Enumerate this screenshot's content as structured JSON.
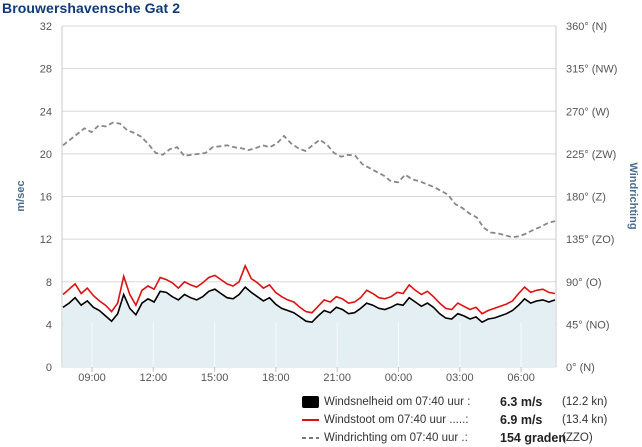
{
  "title": "Brouwershavensche Gat 2",
  "chart_data": {
    "type": "line",
    "title": "Brouwershavensche Gat 2",
    "ylabel": "m/sec",
    "y2label": "Windrichting",
    "ylim": [
      0,
      32
    ],
    "yticks": [
      0,
      4,
      8,
      12,
      16,
      20,
      24,
      28,
      32
    ],
    "y2ticks": [
      "0° (N)",
      "45° (NO)",
      "90° (O)",
      "135° (ZO)",
      "180° (Z)",
      "225° (ZW)",
      "270° (W)",
      "315° (NW)",
      "360° (N)"
    ],
    "xticks": [
      "09:00",
      "12:00",
      "15:00",
      "18:00",
      "21:00",
      "00:00",
      "03:00",
      "06:00"
    ],
    "x_start": "07:40",
    "grid": true,
    "legend": "bottom-right",
    "colors": {
      "windsnelheid": "#000000",
      "windstoot": "#dd1111",
      "windrichting": "#888888",
      "area": "#e4eff3"
    },
    "series": [
      {
        "name": "Windsnelheid",
        "axis": "left",
        "style": "solid",
        "fill": true,
        "values": [
          5.6,
          6.0,
          6.5,
          5.8,
          6.2,
          5.6,
          5.3,
          4.8,
          4.3,
          5.0,
          6.8,
          5.5,
          4.9,
          6.0,
          6.4,
          6.1,
          7.1,
          7.0,
          6.6,
          6.3,
          6.8,
          6.5,
          6.3,
          6.6,
          7.1,
          7.3,
          6.9,
          6.5,
          6.4,
          6.8,
          7.5,
          7.0,
          6.6,
          6.2,
          6.5,
          5.9,
          5.5,
          5.3,
          5.1,
          4.7,
          4.3,
          4.2,
          4.8,
          5.3,
          5.1,
          5.6,
          5.4,
          5.0,
          5.1,
          5.5,
          6.0,
          5.8,
          5.5,
          5.4,
          5.6,
          5.9,
          5.8,
          6.5,
          6.1,
          5.7,
          6.0,
          5.6,
          5.0,
          4.6,
          4.5,
          5.0,
          4.8,
          4.5,
          4.7,
          4.2,
          4.5,
          4.6,
          4.8,
          5.0,
          5.3,
          5.8,
          6.4,
          6.0,
          6.2,
          6.3,
          6.1,
          6.3
        ]
      },
      {
        "name": "Windstoot",
        "axis": "left",
        "style": "solid",
        "fill": false,
        "values": [
          6.8,
          7.3,
          7.8,
          6.9,
          7.4,
          6.7,
          6.2,
          5.8,
          5.2,
          6.0,
          8.5,
          6.8,
          5.8,
          7.2,
          7.6,
          7.3,
          8.4,
          8.2,
          7.9,
          7.4,
          8.0,
          7.7,
          7.5,
          7.9,
          8.4,
          8.6,
          8.2,
          7.8,
          7.6,
          8.0,
          9.5,
          8.3,
          7.9,
          7.4,
          7.7,
          7.0,
          6.6,
          6.3,
          6.1,
          5.6,
          5.2,
          5.1,
          5.7,
          6.3,
          6.1,
          6.6,
          6.4,
          6.0,
          6.1,
          6.5,
          7.2,
          6.9,
          6.5,
          6.4,
          6.6,
          7.0,
          6.9,
          7.7,
          7.2,
          6.8,
          7.1,
          6.6,
          6.0,
          5.5,
          5.4,
          6.0,
          5.7,
          5.4,
          5.6,
          5.0,
          5.3,
          5.5,
          5.7,
          5.9,
          6.2,
          6.9,
          7.5,
          7.0,
          7.2,
          7.3,
          7.0,
          6.9
        ]
      },
      {
        "name": "Windrichting",
        "axis": "right",
        "style": "dashed",
        "fill": false,
        "values": [
          234,
          240,
          246,
          252,
          248,
          255,
          254,
          258,
          257,
          250,
          247,
          243,
          235,
          226,
          224,
          230,
          232,
          223,
          224,
          225,
          226,
          232,
          233,
          234,
          232,
          231,
          229,
          231,
          234,
          232,
          236,
          244,
          236,
          231,
          228,
          234,
          240,
          235,
          226,
          222,
          224,
          223,
          214,
          210,
          206,
          202,
          196,
          195,
          203,
          198,
          196,
          193,
          190,
          186,
          182,
          172,
          168,
          162,
          158,
          147,
          142,
          141,
          139,
          137,
          138,
          141,
          145,
          148,
          152,
          154
        ]
      }
    ],
    "legend_entries": [
      {
        "label": "Windsnelheid om 07:40 uur :",
        "value": "6.3 m/s",
        "extra": "(12.2 kn)"
      },
      {
        "label": "Windstoot om 07:40 uur .....:",
        "value": "6.9 m/s",
        "extra": "(13.4 kn)"
      },
      {
        "label": "Windrichting om 07:40 uur .:",
        "value": "154 graden",
        "extra": "(ZZO)"
      }
    ]
  }
}
